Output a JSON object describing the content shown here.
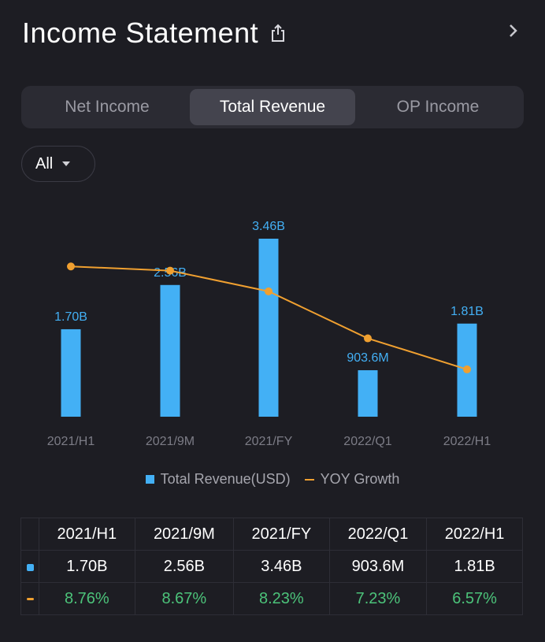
{
  "header": {
    "title": "Income Statement"
  },
  "tabs": [
    {
      "label": "Net Income",
      "active": false
    },
    {
      "label": "Total Revenue",
      "active": true
    },
    {
      "label": "OP Income",
      "active": false
    }
  ],
  "filter": {
    "label": "All"
  },
  "colors": {
    "bar": "#43b0f5",
    "line": "#f0a030",
    "growth_text": "#4cc37a",
    "background": "#1d1d23"
  },
  "chart_data": {
    "type": "bar",
    "categories": [
      "2021/H1",
      "2021/9M",
      "2021/FY",
      "2022/Q1",
      "2022/H1"
    ],
    "series": [
      {
        "name": "Total Revenue(USD)",
        "type": "bar",
        "values": [
          1.7,
          2.56,
          3.46,
          0.9036,
          1.81
        ],
        "labels": [
          "1.70B",
          "2.56B",
          "3.46B",
          "903.6M",
          "1.81B"
        ]
      },
      {
        "name": "YOY Growth",
        "type": "line",
        "values": [
          8.76,
          8.67,
          8.23,
          7.23,
          6.57
        ]
      }
    ]
  },
  "table": {
    "headers": [
      "2021/H1",
      "2021/9M",
      "2021/FY",
      "2022/Q1",
      "2022/H1"
    ],
    "revenue": [
      "1.70B",
      "2.56B",
      "3.46B",
      "903.6M",
      "1.81B"
    ],
    "growth": [
      "8.76%",
      "8.67%",
      "8.23%",
      "7.23%",
      "6.57%"
    ]
  }
}
